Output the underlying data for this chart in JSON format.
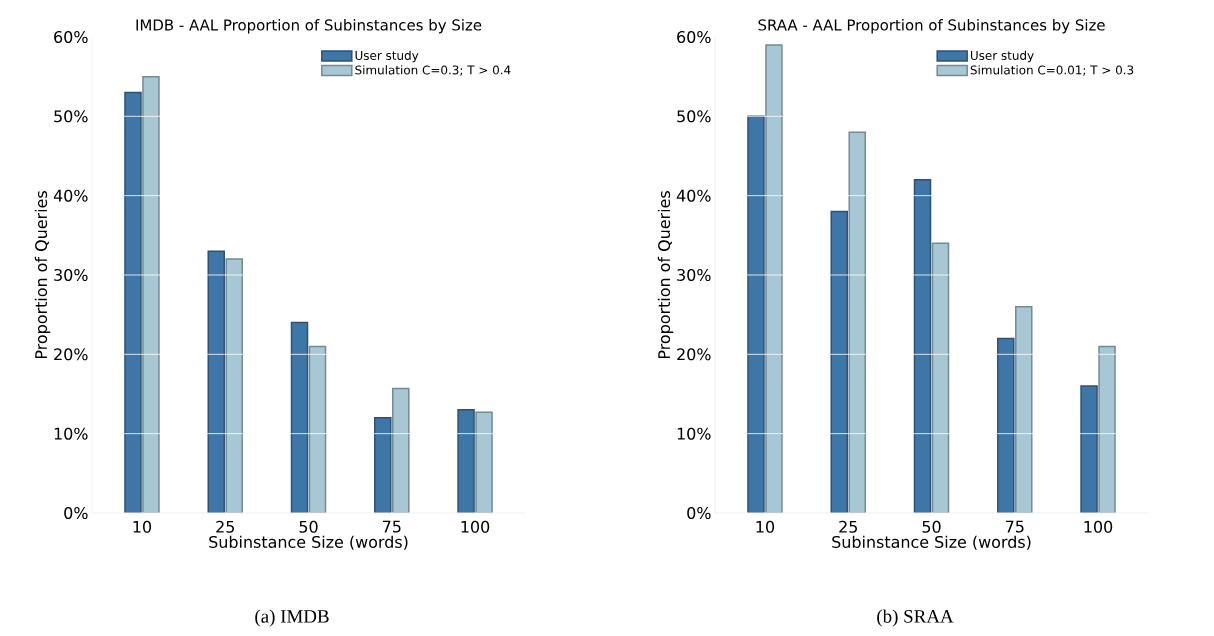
{
  "chart_data": [
    {
      "type": "bar",
      "title": "IMDB - AAL Proportion of Subinstances by Size",
      "xlabel": "Subinstance Size (words)",
      "ylabel": "Proportion of Queries",
      "categories": [
        "10",
        "25",
        "50",
        "75",
        "100"
      ],
      "series": [
        {
          "name": "User study",
          "color": "#3f76a8",
          "values": [
            53,
            33,
            24,
            12,
            13
          ]
        },
        {
          "name": "Simulation C=0.3; T > 0.4",
          "color": "#a7c7d4",
          "values": [
            55,
            32,
            21,
            15.7,
            12.7
          ]
        }
      ],
      "ylim": [
        0,
        60
      ],
      "yticks": [
        {
          "value": 0,
          "label": "0%"
        },
        {
          "value": 10,
          "label": "10%"
        },
        {
          "value": 20,
          "label": "20%"
        },
        {
          "value": 30,
          "label": "30%"
        },
        {
          "value": 40,
          "label": "40%"
        },
        {
          "value": 50,
          "label": "50%"
        },
        {
          "value": 60,
          "label": "60%"
        }
      ],
      "grid": "y",
      "legend": "top right",
      "annotations": [
        "(a) IMDB"
      ]
    },
    {
      "type": "bar",
      "title": "SRAA - AAL Proportion of Subinstances by Size",
      "xlabel": "Subinstance Size (words)",
      "ylabel": "Proportion of Queries",
      "categories": [
        "10",
        "25",
        "50",
        "75",
        "100"
      ],
      "series": [
        {
          "name": "User study",
          "color": "#3f76a8",
          "values": [
            50,
            38,
            42,
            22,
            16
          ]
        },
        {
          "name": "Simulation C=0.01; T > 0.3",
          "color": "#a7c7d4",
          "values": [
            59,
            48,
            34,
            26,
            21
          ]
        }
      ],
      "ylim": [
        0,
        60
      ],
      "yticks": [
        {
          "value": 0,
          "label": "0%"
        },
        {
          "value": 10,
          "label": "10%"
        },
        {
          "value": 20,
          "label": "20%"
        },
        {
          "value": 30,
          "label": "30%"
        },
        {
          "value": 40,
          "label": "40%"
        },
        {
          "value": 50,
          "label": "50%"
        },
        {
          "value": 60,
          "label": "60%"
        }
      ],
      "grid": "y",
      "legend": "top right",
      "annotations": [
        "(b) SRAA"
      ]
    }
  ]
}
